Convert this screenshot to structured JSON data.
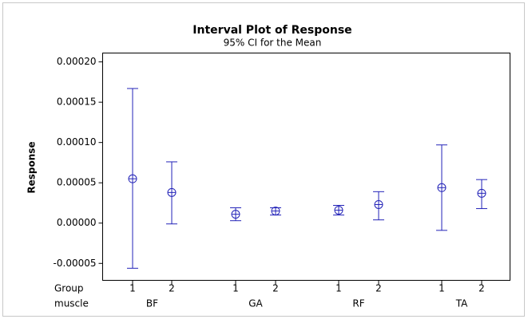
{
  "chart_data": {
    "type": "interval",
    "title": "Interval Plot of Response",
    "subtitle": "95% CI for the Mean",
    "y_label": "Response",
    "row_labels": [
      "Group",
      "muscle"
    ],
    "groups": [
      "1",
      "2",
      "1",
      "2",
      "1",
      "2",
      "1",
      "2"
    ],
    "muscles": [
      "BF",
      "GA",
      "RF",
      "TA"
    ],
    "color": "#2323b8",
    "means": [
      5.5e-05,
      3.8e-05,
      1.1e-05,
      1.5e-05,
      1.6e-05,
      2.3e-05,
      4.4e-05,
      3.7e-05
    ],
    "upper": [
      0.000167,
      7.6e-05,
      1.9e-05,
      1.9e-05,
      2.2e-05,
      3.9e-05,
      9.7e-05,
      5.4e-05
    ],
    "lower": [
      -5.6e-05,
      -1e-06,
      3e-06,
      1e-05,
      1e-05,
      4e-06,
      -9e-06,
      1.8e-05
    ],
    "ylim": [
      -7.1e-05,
      0.000211
    ],
    "yticks": [
      {
        "value": -5e-05,
        "label": "-0.00005"
      },
      {
        "value": 0,
        "label": "0.00000"
      },
      {
        "value": 5e-05,
        "label": "0.00005"
      },
      {
        "value": 0.0001,
        "label": "0.00010"
      },
      {
        "value": 0.00015,
        "label": "0.00015"
      },
      {
        "value": 0.0002,
        "label": "0.00020"
      }
    ]
  }
}
